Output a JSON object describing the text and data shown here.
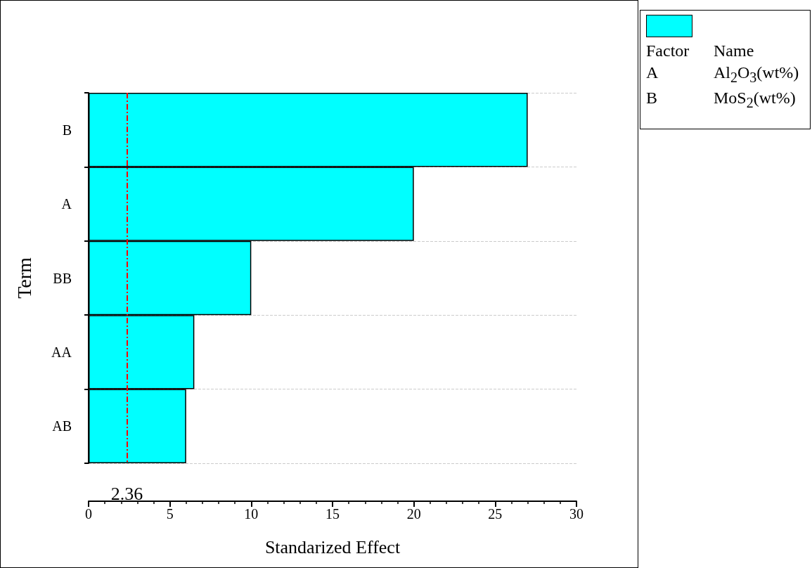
{
  "chart_data": {
    "type": "bar",
    "orientation": "horizontal",
    "xlabel": "Standarized Effect",
    "ylabel": "Term",
    "categories": [
      "B",
      "A",
      "BB",
      "AA",
      "AB"
    ],
    "values": [
      27,
      20,
      10,
      6.5,
      6
    ],
    "color": "#00ffff",
    "xlim": [
      0,
      30
    ],
    "xticks": [
      0,
      5,
      10,
      15,
      20,
      25,
      30
    ],
    "grid": "y",
    "ref_lines": [
      {
        "axis": "x",
        "value": 2.36,
        "label": "2.36",
        "color": "#ff0000",
        "line_style": "dashed"
      }
    ],
    "annotations": [
      "Factor",
      "Name",
      "A",
      "Al$_{2}$O$_{3}$(wt%)",
      "B",
      "MoS$_{2}$(wt%)"
    ]
  }
}
